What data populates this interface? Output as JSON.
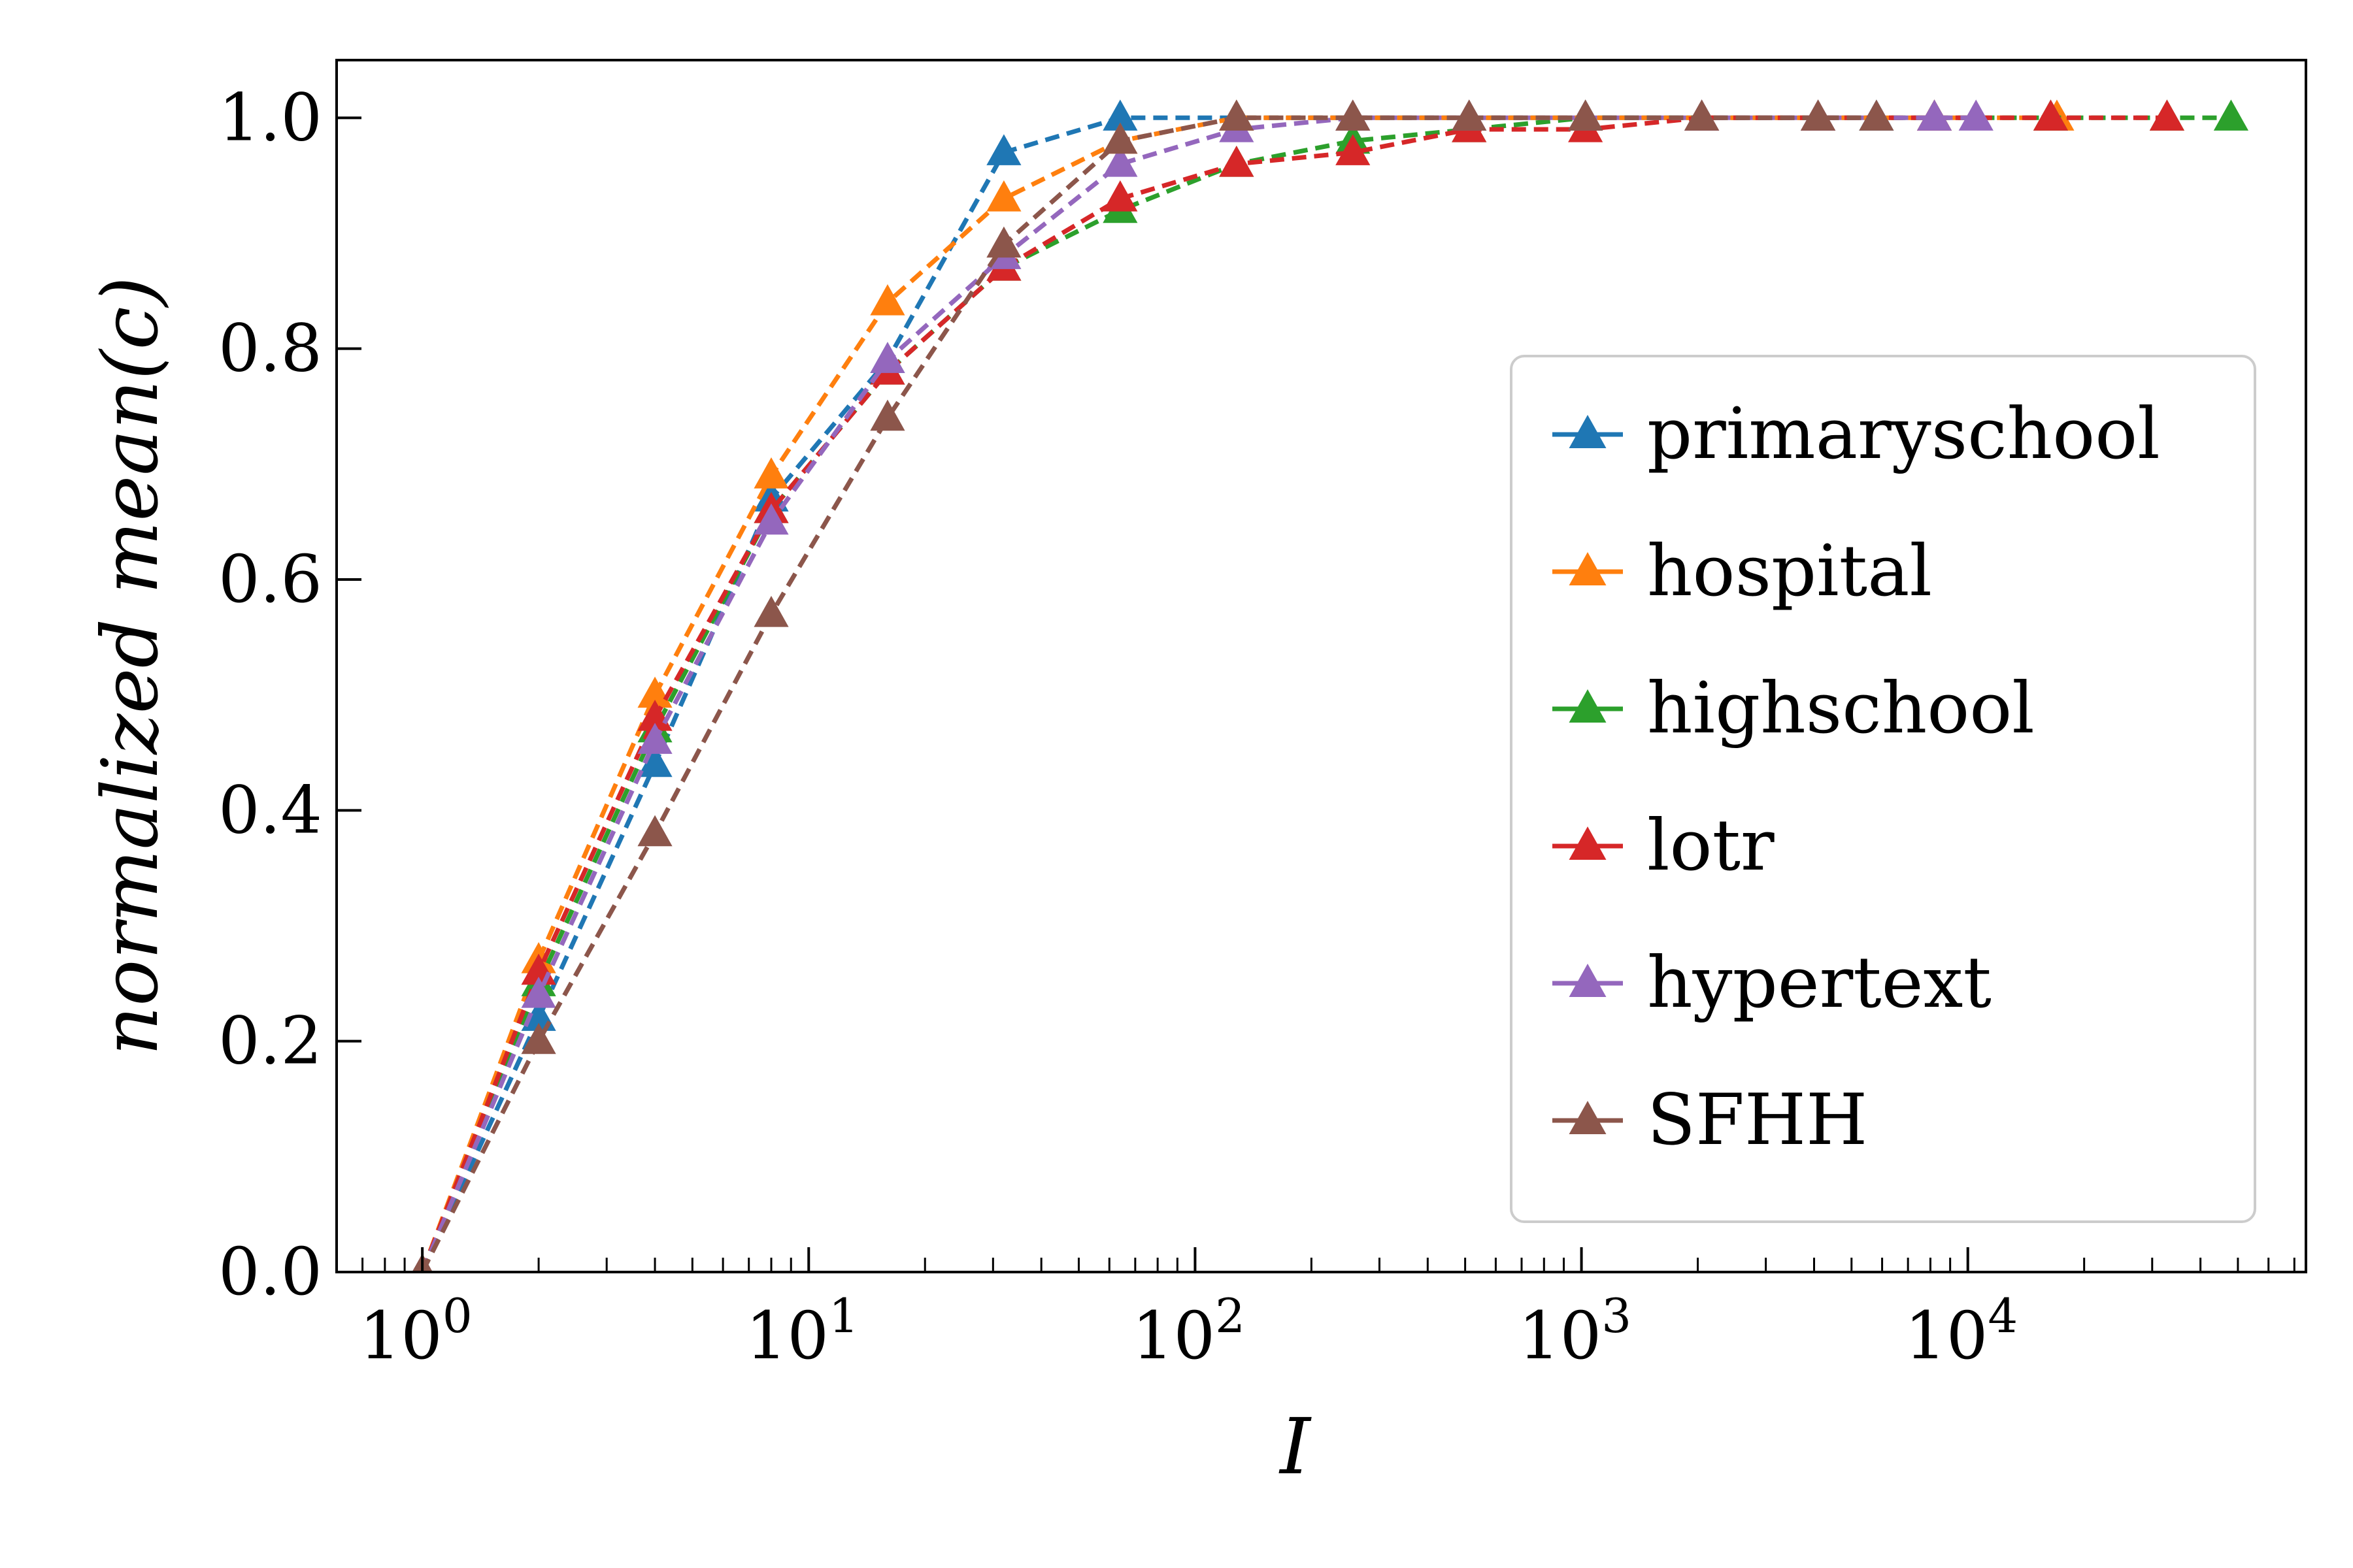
{
  "chart_data": {
    "type": "line",
    "title": "",
    "xlabel": "I",
    "ylabel": "normalized mean(c)",
    "xscale": "log",
    "xlim": [
      0.6,
      75000
    ],
    "ylim": [
      0.0,
      1.05
    ],
    "x_ticks": [
      {
        "value": 1,
        "base": "10",
        "exp": "0"
      },
      {
        "value": 10,
        "base": "10",
        "exp": "1"
      },
      {
        "value": 100,
        "base": "10",
        "exp": "2"
      },
      {
        "value": 1000,
        "base": "10",
        "exp": "3"
      },
      {
        "value": 10000,
        "base": "10",
        "exp": "4"
      }
    ],
    "y_ticks": [
      {
        "value": 0.0,
        "label": "0.0"
      },
      {
        "value": 0.2,
        "label": "0.2"
      },
      {
        "value": 0.4,
        "label": "0.4"
      },
      {
        "value": 0.6,
        "label": "0.6"
      },
      {
        "value": 0.8,
        "label": "0.8"
      },
      {
        "value": 1.0,
        "label": "1.0"
      }
    ],
    "grid": false,
    "legend_position": "center-right",
    "marker": "triangle",
    "line_style": "dashed",
    "series": [
      {
        "name": "primaryschool",
        "color": "#1f77b4",
        "x": [
          1,
          2,
          4,
          8,
          16,
          32,
          64,
          128,
          256,
          512,
          1024,
          2048,
          4096,
          5800
        ],
        "y": [
          0.0,
          0.22,
          0.44,
          0.67,
          0.79,
          0.97,
          1.0,
          1.0,
          1.0,
          1.0,
          1.0,
          1.0,
          1.0,
          1.0
        ]
      },
      {
        "name": "hospital",
        "color": "#ff7f0e",
        "x": [
          1,
          2,
          4,
          8,
          16,
          32,
          64,
          128,
          256,
          512,
          1024,
          2048,
          4096,
          8192,
          17000
        ],
        "y": [
          0.0,
          0.27,
          0.5,
          0.69,
          0.84,
          0.93,
          0.98,
          1.0,
          1.0,
          1.0,
          1.0,
          1.0,
          1.0,
          1.0,
          1.0
        ]
      },
      {
        "name": "highschool",
        "color": "#2ca02c",
        "x": [
          1,
          2,
          4,
          8,
          16,
          32,
          64,
          128,
          256,
          512,
          1024,
          2048,
          4096,
          8192,
          16384,
          32768,
          48000
        ],
        "y": [
          0.0,
          0.25,
          0.47,
          0.66,
          0.78,
          0.87,
          0.92,
          0.96,
          0.98,
          0.99,
          1.0,
          1.0,
          1.0,
          1.0,
          1.0,
          1.0,
          1.0
        ]
      },
      {
        "name": "lotr",
        "color": "#d62728",
        "x": [
          1,
          2,
          4,
          8,
          16,
          32,
          64,
          128,
          256,
          512,
          1024,
          2048,
          4096,
          8192,
          16384,
          32768
        ],
        "y": [
          0.0,
          0.26,
          0.48,
          0.66,
          0.78,
          0.87,
          0.93,
          0.96,
          0.97,
          0.99,
          0.99,
          1.0,
          1.0,
          1.0,
          1.0,
          1.0
        ]
      },
      {
        "name": "hypertext",
        "color": "#9467bd",
        "x": [
          1,
          2,
          4,
          8,
          16,
          32,
          64,
          128,
          256,
          512,
          1024,
          2048,
          4096,
          8192,
          10500
        ],
        "y": [
          0.0,
          0.24,
          0.46,
          0.65,
          0.79,
          0.88,
          0.96,
          0.99,
          1.0,
          1.0,
          1.0,
          1.0,
          1.0,
          1.0,
          1.0
        ]
      },
      {
        "name": "SFHH",
        "color": "#8c564b",
        "x": [
          1,
          2,
          4,
          8,
          16,
          32,
          64,
          128,
          256,
          512,
          1024,
          2048,
          4096,
          5800
        ],
        "y": [
          0.0,
          0.2,
          0.38,
          0.57,
          0.74,
          0.89,
          0.98,
          1.0,
          1.0,
          1.0,
          1.0,
          1.0,
          1.0,
          1.0
        ]
      }
    ]
  }
}
